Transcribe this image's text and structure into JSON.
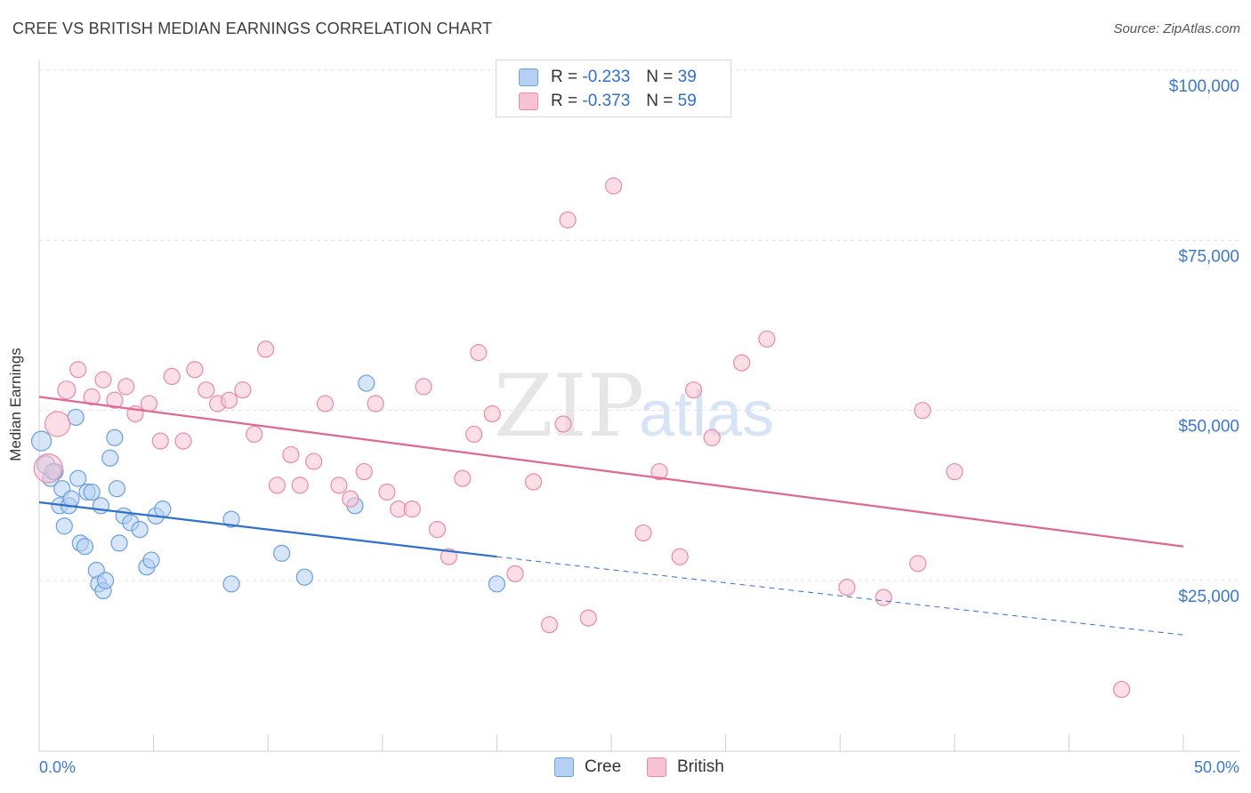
{
  "chart_data": {
    "type": "scatter",
    "title": "CREE VS BRITISH MEDIAN EARNINGS CORRELATION CHART",
    "source": "Source: ZipAtlas.com",
    "xlabel": "",
    "ylabel": "Median Earnings",
    "xlim": [
      0,
      50
    ],
    "ylim": [
      0,
      105000
    ],
    "x_tick_labels": [
      {
        "value": 0,
        "label": "0.0%"
      },
      {
        "value": 50,
        "label": "50.0%"
      }
    ],
    "y_tick_labels": [
      {
        "value": 25000,
        "label": "$25,000"
      },
      {
        "value": 50000,
        "label": "$50,000"
      },
      {
        "value": 75000,
        "label": "$75,000"
      },
      {
        "value": 100000,
        "label": "$100,000"
      }
    ],
    "grid": true,
    "watermark": "ZIPatlas",
    "legend_stats": [
      {
        "series": "Cree",
        "r_label": "R =",
        "r_value": "-0.233",
        "n_label": "N =",
        "n_value": "39"
      },
      {
        "series": "British",
        "r_label": "R =",
        "r_value": "-0.373",
        "n_label": "N =",
        "n_value": "59"
      }
    ],
    "series": [
      {
        "name": "Cree",
        "color": "#6a9fe0",
        "fill": "#b5d0f3",
        "line_color": "#2f6fd0",
        "trend": {
          "x0": 0,
          "y0": 36500,
          "x1": 20,
          "y1": 28500,
          "dashed_to_x": 50,
          "dashed_to_y": 17000
        },
        "points": [
          [
            0.1,
            45500,
            11
          ],
          [
            0.3,
            42000,
            10
          ],
          [
            0.5,
            40000,
            9
          ],
          [
            0.7,
            41000,
            9
          ],
          [
            0.9,
            36000,
            9
          ],
          [
            1.0,
            38500,
            9
          ],
          [
            1.1,
            33000,
            9
          ],
          [
            1.3,
            36000,
            9
          ],
          [
            1.4,
            37000,
            9
          ],
          [
            1.6,
            49000,
            9
          ],
          [
            1.7,
            40000,
            9
          ],
          [
            1.8,
            30500,
            9
          ],
          [
            2.0,
            30000,
            9
          ],
          [
            2.1,
            38000,
            9
          ],
          [
            2.3,
            38000,
            9
          ],
          [
            2.5,
            26500,
            9
          ],
          [
            2.6,
            24500,
            9
          ],
          [
            2.7,
            36000,
            9
          ],
          [
            2.8,
            23500,
            9
          ],
          [
            2.9,
            25000,
            9
          ],
          [
            3.1,
            43000,
            9
          ],
          [
            3.3,
            46000,
            9
          ],
          [
            3.4,
            38500,
            9
          ],
          [
            3.5,
            30500,
            9
          ],
          [
            3.7,
            34500,
            9
          ],
          [
            4.0,
            33500,
            9
          ],
          [
            4.4,
            32500,
            9
          ],
          [
            4.7,
            27000,
            9
          ],
          [
            4.9,
            28000,
            9
          ],
          [
            5.1,
            34500,
            9
          ],
          [
            5.4,
            35500,
            9
          ],
          [
            8.4,
            24500,
            9
          ],
          [
            8.4,
            34000,
            9
          ],
          [
            10.6,
            29000,
            9
          ],
          [
            11.6,
            25500,
            9
          ],
          [
            13.8,
            36000,
            9
          ],
          [
            14.3,
            54000,
            9
          ],
          [
            20.0,
            24500,
            9
          ],
          [
            0.6,
            41000,
            9
          ]
        ]
      },
      {
        "name": "British",
        "color": "#e98aa8",
        "fill": "#f7c2d2",
        "line_color": "#e06890",
        "trend": {
          "x0": 0,
          "y0": 52000,
          "x1": 50,
          "y1": 30000
        },
        "points": [
          [
            0.4,
            41500,
            16
          ],
          [
            0.8,
            48000,
            14
          ],
          [
            1.2,
            53000,
            10
          ],
          [
            1.7,
            56000,
            9
          ],
          [
            2.3,
            52000,
            9
          ],
          [
            2.8,
            54500,
            9
          ],
          [
            3.3,
            51500,
            9
          ],
          [
            3.8,
            53500,
            9
          ],
          [
            4.2,
            49500,
            9
          ],
          [
            4.8,
            51000,
            9
          ],
          [
            5.3,
            45500,
            9
          ],
          [
            5.8,
            55000,
            9
          ],
          [
            6.3,
            45500,
            9
          ],
          [
            6.8,
            56000,
            9
          ],
          [
            7.3,
            53000,
            9
          ],
          [
            7.8,
            51000,
            9
          ],
          [
            8.3,
            51500,
            9
          ],
          [
            8.9,
            53000,
            9
          ],
          [
            9.4,
            46500,
            9
          ],
          [
            9.9,
            59000,
            9
          ],
          [
            10.4,
            39000,
            9
          ],
          [
            11.0,
            43500,
            9
          ],
          [
            11.4,
            39000,
            9
          ],
          [
            12.0,
            42500,
            9
          ],
          [
            12.5,
            51000,
            9
          ],
          [
            13.1,
            39000,
            9
          ],
          [
            13.6,
            37000,
            9
          ],
          [
            14.2,
            41000,
            9
          ],
          [
            14.7,
            51000,
            9
          ],
          [
            15.2,
            38000,
            9
          ],
          [
            15.7,
            35500,
            9
          ],
          [
            16.3,
            35500,
            9
          ],
          [
            16.8,
            53500,
            9
          ],
          [
            17.4,
            32500,
            9
          ],
          [
            17.9,
            28500,
            9
          ],
          [
            18.5,
            40000,
            9
          ],
          [
            19.0,
            46500,
            9
          ],
          [
            19.2,
            58500,
            9
          ],
          [
            19.8,
            49500,
            9
          ],
          [
            20.8,
            26000,
            9
          ],
          [
            21.6,
            39500,
            9
          ],
          [
            22.3,
            18500,
            9
          ],
          [
            22.9,
            48000,
            9
          ],
          [
            23.1,
            78000,
            9
          ],
          [
            24.0,
            19500,
            9
          ],
          [
            25.1,
            83000,
            9
          ],
          [
            26.4,
            32000,
            9
          ],
          [
            27.1,
            41000,
            9
          ],
          [
            28.0,
            28500,
            9
          ],
          [
            28.6,
            53000,
            9
          ],
          [
            29.4,
            46000,
            9
          ],
          [
            30.7,
            57000,
            9
          ],
          [
            31.8,
            60500,
            9
          ],
          [
            35.3,
            24000,
            9
          ],
          [
            36.9,
            22500,
            9
          ],
          [
            38.4,
            27500,
            9
          ],
          [
            38.6,
            50000,
            9
          ],
          [
            40.0,
            41000,
            9
          ],
          [
            47.3,
            9000,
            9
          ]
        ]
      }
    ]
  }
}
